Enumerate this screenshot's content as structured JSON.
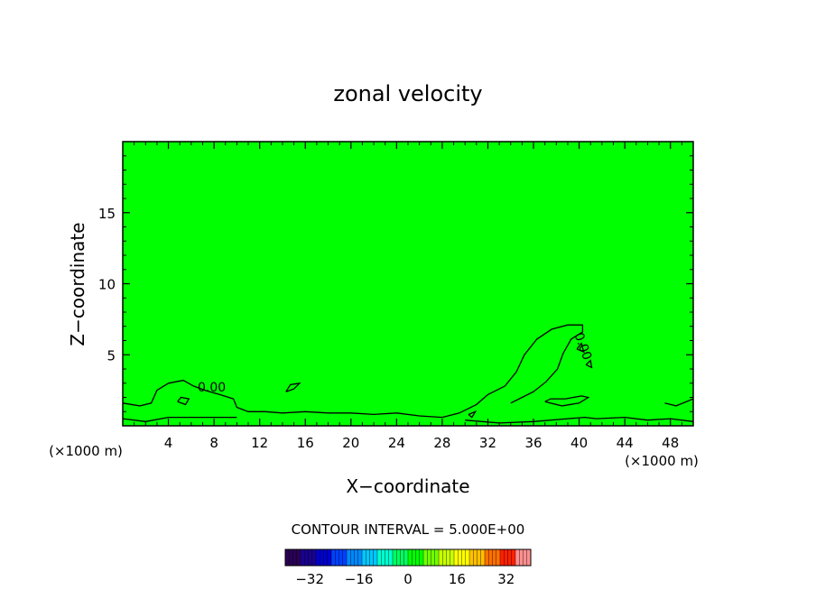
{
  "chart_data": {
    "type": "heatmap",
    "title": "zonal velocity",
    "xlabel": "X−coordinate",
    "ylabel": "Z−coordinate",
    "x_unit_left": "(×1000 m)",
    "x_unit_right": "(×1000 m)",
    "xlim": [
      0,
      50
    ],
    "ylim": [
      0,
      20
    ],
    "x_ticks": [
      "4",
      "8",
      "12",
      "16",
      "20",
      "24",
      "28",
      "32",
      "36",
      "40",
      "44",
      "48"
    ],
    "x_tick_values": [
      4,
      8,
      12,
      16,
      20,
      24,
      28,
      32,
      36,
      40,
      44,
      48
    ],
    "y_ticks": [
      "5",
      "10",
      "15"
    ],
    "y_tick_values": [
      5,
      10,
      15
    ],
    "field_color": "#00ff00",
    "contour_interval_text": "CONTOUR INTERVAL = 5.000E+00",
    "contour_labels": [
      {
        "text": "0.00",
        "x": 7.8,
        "z": 2.4
      },
      {
        "text": "0.00",
        "x": 40.0,
        "z": 5.5
      }
    ],
    "contours": [
      {
        "points": [
          [
            0,
            1.6
          ],
          [
            1.5,
            1.4
          ],
          [
            2.5,
            1.6
          ],
          [
            3.0,
            2.5
          ],
          [
            4.0,
            3.0
          ],
          [
            5.3,
            3.2
          ],
          [
            6.2,
            2.8
          ],
          [
            7.2,
            2.5
          ],
          [
            8.5,
            2.2
          ],
          [
            9.7,
            1.9
          ],
          [
            10.0,
            1.3
          ],
          [
            11.0,
            1.0
          ],
          [
            12.5,
            1.0
          ],
          [
            14.0,
            0.9
          ],
          [
            16.0,
            1.0
          ],
          [
            18.0,
            0.9
          ],
          [
            20.0,
            0.9
          ],
          [
            22.0,
            0.8
          ],
          [
            24.0,
            0.9
          ],
          [
            26.0,
            0.7
          ],
          [
            28.0,
            0.6
          ],
          [
            29.5,
            0.9
          ],
          [
            31.0,
            1.5
          ],
          [
            32.0,
            2.2
          ],
          [
            33.5,
            2.8
          ],
          [
            34.5,
            3.8
          ],
          [
            35.2,
            5.0
          ],
          [
            36.3,
            6.1
          ],
          [
            37.6,
            6.8
          ],
          [
            39.0,
            7.1
          ],
          [
            40.3,
            7.1
          ],
          [
            40.3,
            6.6
          ],
          [
            39.3,
            6.1
          ],
          [
            38.6,
            5.1
          ],
          [
            38.1,
            4.0
          ],
          [
            37.1,
            3.1
          ],
          [
            36.0,
            2.4
          ],
          [
            35.0,
            2.0
          ],
          [
            34.0,
            1.6
          ]
        ]
      },
      {
        "points": [
          [
            0,
            0.5
          ],
          [
            2.0,
            0.3
          ],
          [
            4.0,
            0.6
          ],
          [
            6.0,
            0.6
          ],
          [
            8.0,
            0.6
          ],
          [
            10.0,
            0.6
          ]
        ]
      },
      {
        "points": [
          [
            4.8,
            1.7
          ],
          [
            5.5,
            1.5
          ],
          [
            5.8,
            1.9
          ],
          [
            5.1,
            2.0
          ],
          [
            4.8,
            1.7
          ]
        ]
      },
      {
        "points": [
          [
            14.3,
            2.4
          ],
          [
            15.0,
            2.6
          ],
          [
            15.5,
            3.0
          ],
          [
            14.7,
            2.9
          ],
          [
            14.3,
            2.4
          ]
        ]
      },
      {
        "points": [
          [
            37.0,
            1.7
          ],
          [
            38.5,
            1.4
          ],
          [
            40.0,
            1.6
          ],
          [
            40.8,
            2.0
          ],
          [
            40.2,
            2.1
          ],
          [
            38.8,
            1.9
          ],
          [
            37.5,
            1.9
          ],
          [
            37.0,
            1.7
          ]
        ]
      },
      {
        "points": [
          [
            39.8,
            5.4
          ],
          [
            40.4,
            5.2
          ],
          [
            40.2,
            5.8
          ],
          [
            39.8,
            5.4
          ]
        ]
      },
      {
        "points": [
          [
            40.6,
            4.3
          ],
          [
            41.1,
            4.1
          ],
          [
            41.0,
            4.6
          ],
          [
            40.6,
            4.3
          ]
        ]
      },
      {
        "points": [
          [
            30.0,
            0.4
          ],
          [
            31.5,
            0.3
          ],
          [
            33.0,
            0.2
          ],
          [
            36.0,
            0.3
          ],
          [
            39.0,
            0.5
          ],
          [
            40.5,
            0.6
          ],
          [
            41.5,
            0.5
          ],
          [
            44.0,
            0.6
          ],
          [
            46.0,
            0.4
          ],
          [
            48.0,
            0.5
          ],
          [
            50.0,
            0.3
          ]
        ]
      },
      {
        "points": [
          [
            47.5,
            1.6
          ],
          [
            48.5,
            1.4
          ],
          [
            50.0,
            1.9
          ]
        ]
      },
      {
        "points": [
          [
            30.3,
            0.8
          ],
          [
            30.9,
            1.0
          ],
          [
            30.6,
            0.6
          ],
          [
            30.3,
            0.8
          ]
        ]
      }
    ],
    "colorbar": {
      "tick_labels": [
        "−32",
        "−16",
        "0",
        "16",
        "32"
      ],
      "tick_values": [
        -32,
        -16,
        0,
        16,
        32
      ],
      "range": [
        -40,
        40
      ],
      "colors": [
        "#2a0055",
        "#1a0090",
        "#0000cc",
        "#0040ff",
        "#0088ff",
        "#00c8ff",
        "#00ffd0",
        "#00ff60",
        "#00ff00",
        "#70ff00",
        "#c8ff00",
        "#ffff00",
        "#ffc000",
        "#ff7000",
        "#ff2000",
        "#ff9090"
      ]
    }
  }
}
